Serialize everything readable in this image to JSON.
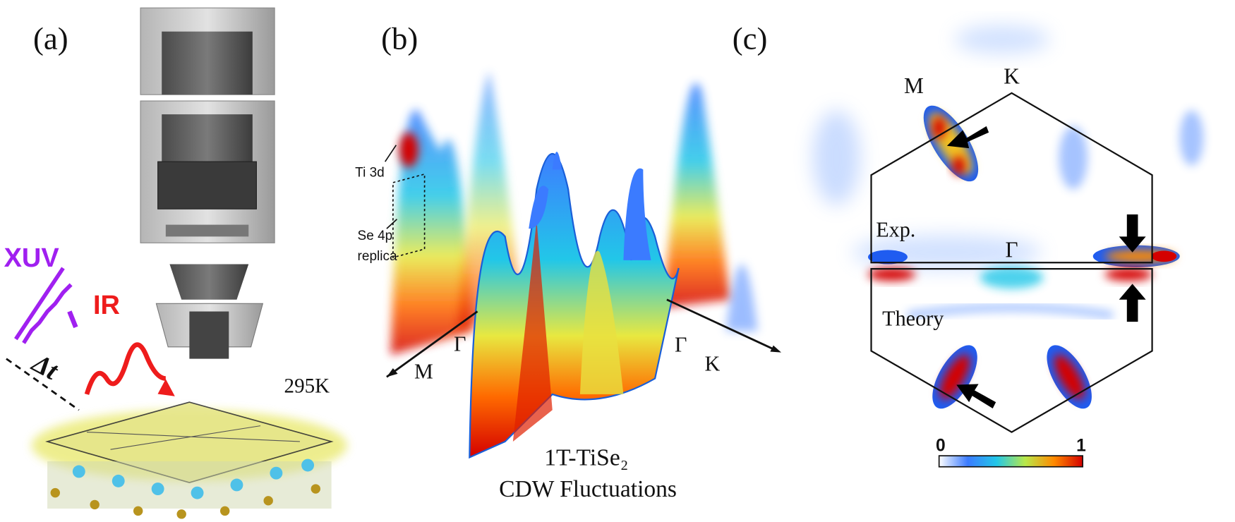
{
  "panel_a": {
    "label": "(a)",
    "beam_xuv": "XUV",
    "beam_ir": "IR",
    "delay": "Δt",
    "temperature": "295K"
  },
  "panel_b": {
    "label": "(b)",
    "annotation_ti": "Ti 3d",
    "annotation_se_line1": "Se 4p",
    "annotation_se_line2": "replica",
    "axis_m": "M",
    "axis_gamma_left": "Γ",
    "axis_gamma_right": "Γ",
    "axis_k": "K",
    "caption_line1": "1T-TiSe₂",
    "caption_line2": "CDW Fluctuations"
  },
  "panel_c": {
    "label": "(c)",
    "point_m": "M",
    "point_k": "K",
    "point_gamma": "Γ",
    "label_exp": "Exp.",
    "label_theory": "Theory",
    "colorbar_min": 0,
    "colorbar_max": 1
  }
}
